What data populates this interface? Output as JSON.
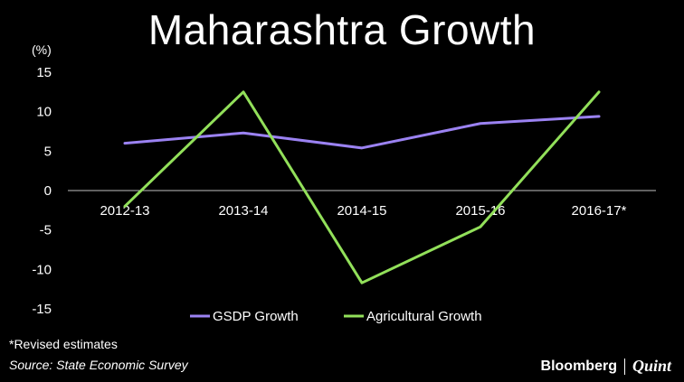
{
  "chart_data": {
    "type": "line",
    "title": "Maharashtra Growth",
    "unit_label": "(%)",
    "categories": [
      "2012-13",
      "2013-14",
      "2014-15",
      "2015-16",
      "2016-17*"
    ],
    "series": [
      {
        "name": "GSDP Growth",
        "color": "#9b82f2",
        "values": [
          6.0,
          7.3,
          5.4,
          8.5,
          9.4
        ]
      },
      {
        "name": "Agricultural Growth",
        "color": "#92e05a",
        "values": [
          -2.0,
          12.5,
          -11.7,
          -4.6,
          12.5
        ]
      }
    ],
    "ylim": [
      -15,
      15
    ],
    "yticks": [
      15,
      10,
      5,
      0,
      -5,
      -10,
      -15
    ],
    "legend_position": "bottom",
    "grid": false
  },
  "footer": {
    "note": "*Revised estimates",
    "source": "Source: State Economic Survey",
    "brand_primary": "Bloomberg",
    "brand_secondary": "Quint"
  }
}
